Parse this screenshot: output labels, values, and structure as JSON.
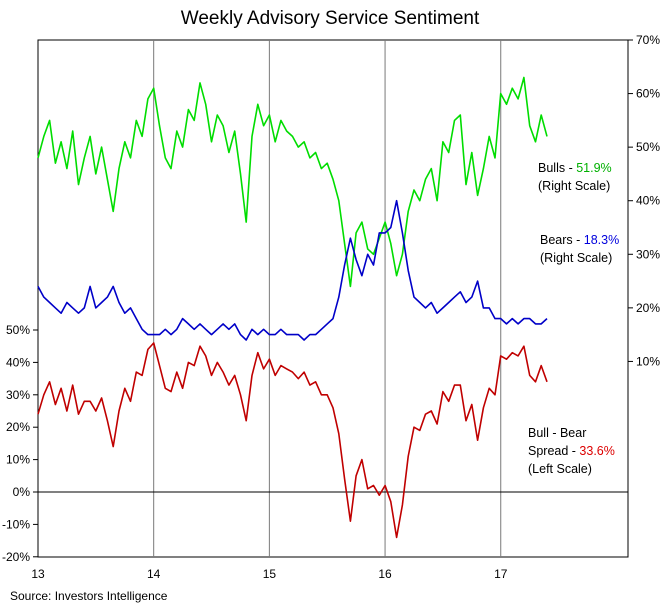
{
  "chart_data": {
    "type": "line",
    "title": "Weekly Advisory Service Sentiment",
    "source": "Source:  Investors Intelligence",
    "x_axis": {
      "ticks": [
        "13",
        "14",
        "15",
        "16",
        "17"
      ],
      "range": [
        2013.0,
        2018.1
      ]
    },
    "right_axis": {
      "ticks": [
        "70%",
        "60%",
        "50%",
        "40%",
        "30%",
        "20%",
        "10%"
      ],
      "range": [
        0,
        70
      ]
    },
    "left_axis": {
      "ticks": [
        "50%",
        "40%",
        "30%",
        "20%",
        "10%",
        "0%",
        "-10%",
        "-20%"
      ],
      "range": [
        -20,
        50
      ]
    },
    "grid": "vertical lines at year ticks; horizontal line at 0%",
    "series": [
      {
        "name": "Bulls",
        "axis": "right",
        "color": "#00dd00",
        "x": [
          2013.0,
          2013.05,
          2013.1,
          2013.15,
          2013.2,
          2013.25,
          2013.3,
          2013.35,
          2013.4,
          2013.45,
          2013.5,
          2013.55,
          2013.6,
          2013.65,
          2013.7,
          2013.75,
          2013.8,
          2013.85,
          2013.9,
          2013.95,
          2014.0,
          2014.05,
          2014.1,
          2014.15,
          2014.2,
          2014.25,
          2014.3,
          2014.35,
          2014.4,
          2014.45,
          2014.5,
          2014.55,
          2014.6,
          2014.65,
          2014.7,
          2014.75,
          2014.8,
          2014.85,
          2014.9,
          2014.95,
          2015.0,
          2015.05,
          2015.1,
          2015.15,
          2015.2,
          2015.25,
          2015.3,
          2015.35,
          2015.4,
          2015.45,
          2015.5,
          2015.55,
          2015.6,
          2015.65,
          2015.7,
          2015.75,
          2015.8,
          2015.85,
          2015.9,
          2015.95,
          2016.0,
          2016.05,
          2016.1,
          2016.15,
          2016.2,
          2016.25,
          2016.3,
          2016.35,
          2016.4,
          2016.45,
          2016.5,
          2016.55,
          2016.6,
          2016.65,
          2016.7,
          2016.75,
          2016.8,
          2016.85,
          2016.9,
          2016.95,
          2017.0,
          2017.05,
          2017.1,
          2017.15,
          2017.2,
          2017.25,
          2017.3,
          2017.35,
          2017.4
        ],
        "values": [
          48,
          52,
          55,
          47,
          51,
          46,
          53,
          43,
          48,
          52,
          45,
          50,
          44,
          38,
          46,
          51,
          48,
          55,
          52,
          59,
          61,
          54,
          48,
          46,
          53,
          50,
          57,
          55,
          62,
          58,
          51,
          56,
          54,
          49,
          53,
          45,
          36,
          52,
          58,
          54,
          56,
          51,
          55,
          53,
          52,
          50,
          51,
          48,
          49,
          46,
          47,
          44,
          40,
          32,
          24,
          34,
          36,
          31,
          30,
          33,
          36,
          32,
          26,
          30,
          38,
          42,
          40,
          44,
          46,
          40,
          51,
          49,
          55,
          56,
          43,
          49,
          41,
          46,
          52,
          48,
          60,
          58,
          61,
          59,
          63,
          54,
          51,
          56,
          52
        ]
      },
      {
        "name": "Bears",
        "axis": "right",
        "color": "#0000c8",
        "x": [
          2013.0,
          2013.05,
          2013.1,
          2013.15,
          2013.2,
          2013.25,
          2013.3,
          2013.35,
          2013.4,
          2013.45,
          2013.5,
          2013.55,
          2013.6,
          2013.65,
          2013.7,
          2013.75,
          2013.8,
          2013.85,
          2013.9,
          2013.95,
          2014.0,
          2014.05,
          2014.1,
          2014.15,
          2014.2,
          2014.25,
          2014.3,
          2014.35,
          2014.4,
          2014.45,
          2014.5,
          2014.55,
          2014.6,
          2014.65,
          2014.7,
          2014.75,
          2014.8,
          2014.85,
          2014.9,
          2014.95,
          2015.0,
          2015.05,
          2015.1,
          2015.15,
          2015.2,
          2015.25,
          2015.3,
          2015.35,
          2015.4,
          2015.45,
          2015.5,
          2015.55,
          2015.6,
          2015.65,
          2015.7,
          2015.75,
          2015.8,
          2015.85,
          2015.9,
          2015.95,
          2016.0,
          2016.05,
          2016.1,
          2016.15,
          2016.2,
          2016.25,
          2016.3,
          2016.35,
          2016.4,
          2016.45,
          2016.5,
          2016.55,
          2016.6,
          2016.65,
          2016.7,
          2016.75,
          2016.8,
          2016.85,
          2016.9,
          2016.95,
          2017.0,
          2017.05,
          2017.1,
          2017.15,
          2017.2,
          2017.25,
          2017.3,
          2017.35,
          2017.4
        ],
        "values": [
          24,
          22,
          21,
          20,
          19,
          21,
          20,
          19,
          20,
          24,
          20,
          21,
          22,
          24,
          21,
          19,
          20,
          18,
          16,
          15,
          15,
          15,
          16,
          15,
          16,
          18,
          17,
          16,
          17,
          16,
          15,
          16,
          17,
          16,
          17,
          15,
          14,
          16,
          15,
          16,
          15,
          15,
          16,
          15,
          15,
          15,
          14,
          15,
          15,
          16,
          17,
          18,
          22,
          28,
          33,
          29,
          26,
          30,
          28,
          34,
          34,
          35,
          40,
          34,
          27,
          22,
          21,
          20,
          21,
          19,
          20,
          21,
          22,
          23,
          21,
          22,
          25,
          20,
          20,
          18,
          18,
          17,
          18,
          17,
          18,
          18,
          17,
          17,
          18
        ]
      },
      {
        "name": "Bull - Bear Spread",
        "axis": "left",
        "color": "#c00000",
        "x": [
          2013.0,
          2013.05,
          2013.1,
          2013.15,
          2013.2,
          2013.25,
          2013.3,
          2013.35,
          2013.4,
          2013.45,
          2013.5,
          2013.55,
          2013.6,
          2013.65,
          2013.7,
          2013.75,
          2013.8,
          2013.85,
          2013.9,
          2013.95,
          2014.0,
          2014.05,
          2014.1,
          2014.15,
          2014.2,
          2014.25,
          2014.3,
          2014.35,
          2014.4,
          2014.45,
          2014.5,
          2014.55,
          2014.6,
          2014.65,
          2014.7,
          2014.75,
          2014.8,
          2014.85,
          2014.9,
          2014.95,
          2015.0,
          2015.05,
          2015.1,
          2015.15,
          2015.2,
          2015.25,
          2015.3,
          2015.35,
          2015.4,
          2015.45,
          2015.5,
          2015.55,
          2015.6,
          2015.65,
          2015.7,
          2015.75,
          2015.8,
          2015.85,
          2015.9,
          2015.95,
          2016.0,
          2016.05,
          2016.1,
          2016.15,
          2016.2,
          2016.25,
          2016.3,
          2016.35,
          2016.4,
          2016.45,
          2016.5,
          2016.55,
          2016.6,
          2016.65,
          2016.7,
          2016.75,
          2016.8,
          2016.85,
          2016.9,
          2016.95,
          2017.0,
          2017.05,
          2017.1,
          2017.15,
          2017.2,
          2017.25,
          2017.3,
          2017.35,
          2017.4
        ],
        "values": [
          24,
          30,
          34,
          27,
          32,
          25,
          33,
          24,
          28,
          28,
          25,
          29,
          22,
          14,
          25,
          32,
          28,
          37,
          36,
          44,
          46,
          39,
          32,
          31,
          37,
          32,
          40,
          39,
          45,
          42,
          36,
          40,
          37,
          33,
          36,
          30,
          22,
          36,
          43,
          38,
          41,
          36,
          39,
          38,
          37,
          35,
          37,
          33,
          34,
          30,
          30,
          26,
          18,
          4,
          -9,
          5,
          10,
          1,
          2,
          -1,
          2,
          -3,
          -14,
          -4,
          11,
          20,
          19,
          24,
          25,
          21,
          31,
          28,
          33,
          33,
          22,
          27,
          16,
          26,
          32,
          30,
          42,
          41,
          43,
          42,
          45,
          36,
          34,
          39,
          34
        ]
      }
    ],
    "annotations": {
      "bulls": {
        "label": "Bulls - ",
        "value": "51.9%",
        "scale": "(Right Scale)",
        "color": "#00b000"
      },
      "bears": {
        "label": "Bears - ",
        "value": "18.3%",
        "scale": "(Right Scale)",
        "color": "#0000dd"
      },
      "spread": {
        "label1": "Bull - Bear",
        "label2": "Spread - ",
        "value": "33.6%",
        "scale": "(Left Scale)",
        "color": "#dd0000"
      }
    }
  }
}
